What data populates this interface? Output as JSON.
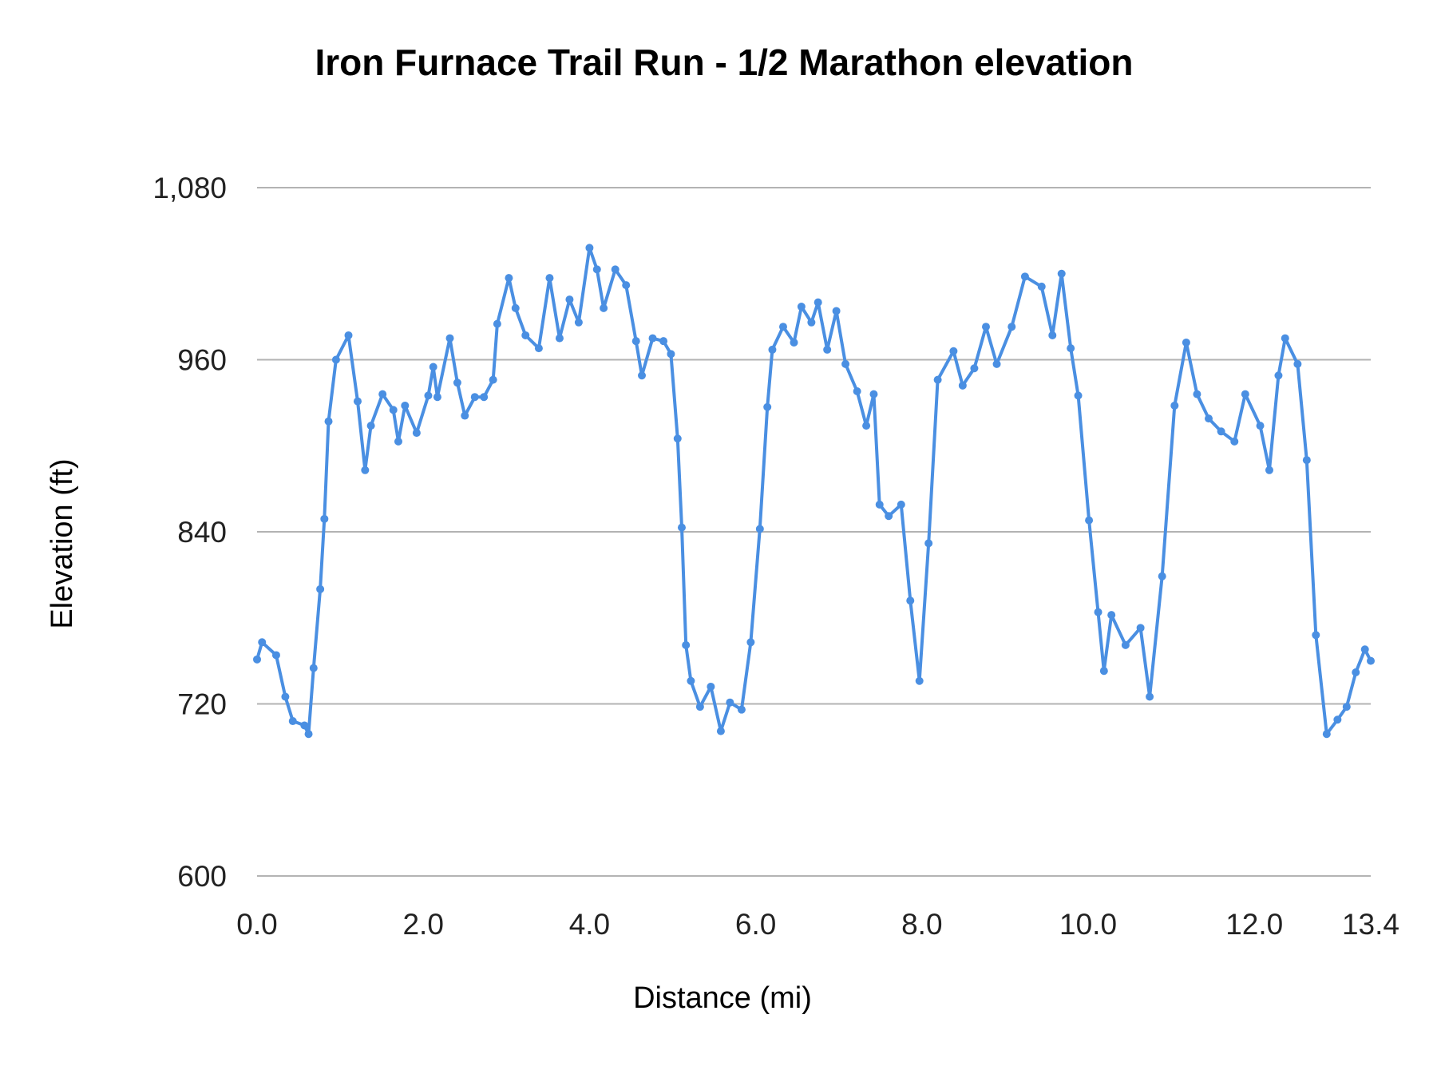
{
  "chart_data": {
    "type": "line",
    "title": "Iron Furnace Trail Run - 1/2 Marathon elevation",
    "xlabel": "Distance (mi)",
    "ylabel": "Elevation (ft)",
    "xlim": [
      0,
      13.4
    ],
    "ylim": [
      600,
      1080
    ],
    "xticks": [
      "0.0",
      "2.0",
      "4.0",
      "6.0",
      "8.0",
      "10.0",
      "12.0",
      "13.4"
    ],
    "xtick_values": [
      0,
      2,
      4,
      6,
      8,
      10,
      12,
      13.4
    ],
    "yticks": [
      "600",
      "720",
      "840",
      "960",
      "1,080"
    ],
    "ytick_values": [
      600,
      720,
      840,
      960,
      1080
    ],
    "grid": "horizontal",
    "legend": "none",
    "line_color": "#4a8fe2",
    "grid_color": "#b3b3b3",
    "x": [
      0,
      0.06,
      0.23,
      0.34,
      0.43,
      0.57,
      0.62,
      0.68,
      0.76,
      0.81,
      0.86,
      0.95,
      1.1,
      1.21,
      1.3,
      1.37,
      1.51,
      1.64,
      1.7,
      1.78,
      1.92,
      2.06,
      2.12,
      2.17,
      2.32,
      2.41,
      2.5,
      2.62,
      2.73,
      2.84,
      2.89,
      3.03,
      3.11,
      3.23,
      3.39,
      3.52,
      3.64,
      3.76,
      3.87,
      4.0,
      4.09,
      4.17,
      4.31,
      4.44,
      4.56,
      4.63,
      4.76,
      4.89,
      4.98,
      5.06,
      5.11,
      5.16,
      5.22,
      5.33,
      5.46,
      5.58,
      5.69,
      5.83,
      5.94,
      6.05,
      6.14,
      6.2,
      6.33,
      6.46,
      6.55,
      6.67,
      6.75,
      6.86,
      6.97,
      7.08,
      7.22,
      7.33,
      7.42,
      7.49,
      7.6,
      7.75,
      7.86,
      7.97,
      8.08,
      8.19,
      8.38,
      8.49,
      8.63,
      8.77,
      8.9,
      9.08,
      9.24,
      9.44,
      9.57,
      9.68,
      9.79,
      9.88,
      10.01,
      10.12,
      10.19,
      10.28,
      10.45,
      10.63,
      10.74,
      10.89,
      11.04,
      11.18,
      11.31,
      11.45,
      11.6,
      11.76,
      11.89,
      12.07,
      12.18,
      12.29,
      12.37,
      12.52,
      12.63,
      12.74,
      12.87,
      13.0,
      13.11,
      13.22,
      13.33,
      13.4
    ],
    "y": [
      751,
      763,
      754,
      725,
      708,
      705,
      699,
      745,
      800,
      849,
      917,
      960,
      977,
      931,
      883,
      914,
      936,
      925,
      903,
      928,
      909,
      935,
      955,
      934,
      975,
      944,
      921,
      934,
      934,
      946,
      985,
      1017,
      996,
      977,
      968,
      1017,
      975,
      1002,
      986,
      1038,
      1023,
      996,
      1023,
      1012,
      973,
      949,
      975,
      973,
      964,
      905,
      843,
      761,
      736,
      718,
      732,
      701,
      721,
      716,
      763,
      842,
      927,
      967,
      983,
      972,
      997,
      986,
      1000,
      967,
      994,
      957,
      938,
      914,
      936,
      859,
      851,
      859,
      792,
      736,
      832,
      946,
      966,
      942,
      954,
      983,
      957,
      983,
      1018,
      1011,
      977,
      1020,
      968,
      935,
      848,
      784,
      743,
      782,
      761,
      773,
      725,
      809,
      928,
      972,
      936,
      919,
      910,
      903,
      936,
      914,
      883,
      949,
      975,
      957,
      890,
      768,
      699,
      709,
      718,
      742,
      758,
      750
    ]
  }
}
